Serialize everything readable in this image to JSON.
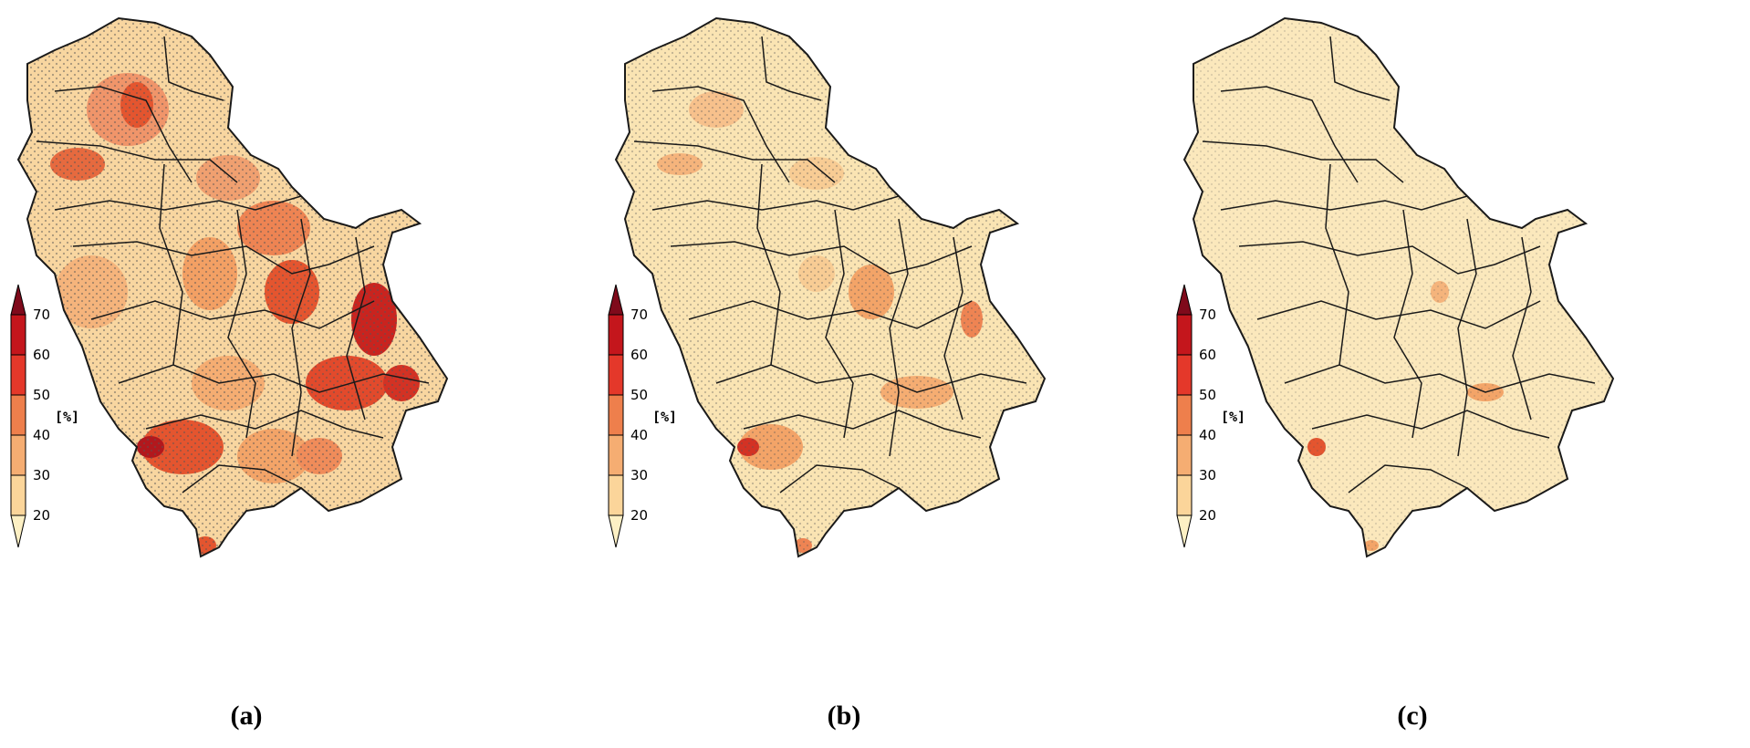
{
  "panels": [
    {
      "label": "(a)",
      "intensity": "high"
    },
    {
      "label": "(b)",
      "intensity": "medium"
    },
    {
      "label": "(c)",
      "intensity": "low"
    }
  ],
  "colorbar": {
    "unit": "[%]",
    "ticks": [
      "70",
      "60",
      "50",
      "40",
      "30",
      "20"
    ],
    "colors": [
      "#7f0a1b",
      "#c4161c",
      "#e4382a",
      "#ee7f4c",
      "#f5ad72",
      "#fbd59a",
      "#fdf0c4"
    ]
  },
  "map_style": {
    "base_fill": "#fae4b3",
    "border_color": "#1a1a1a",
    "stipple_color": "#555555"
  }
}
